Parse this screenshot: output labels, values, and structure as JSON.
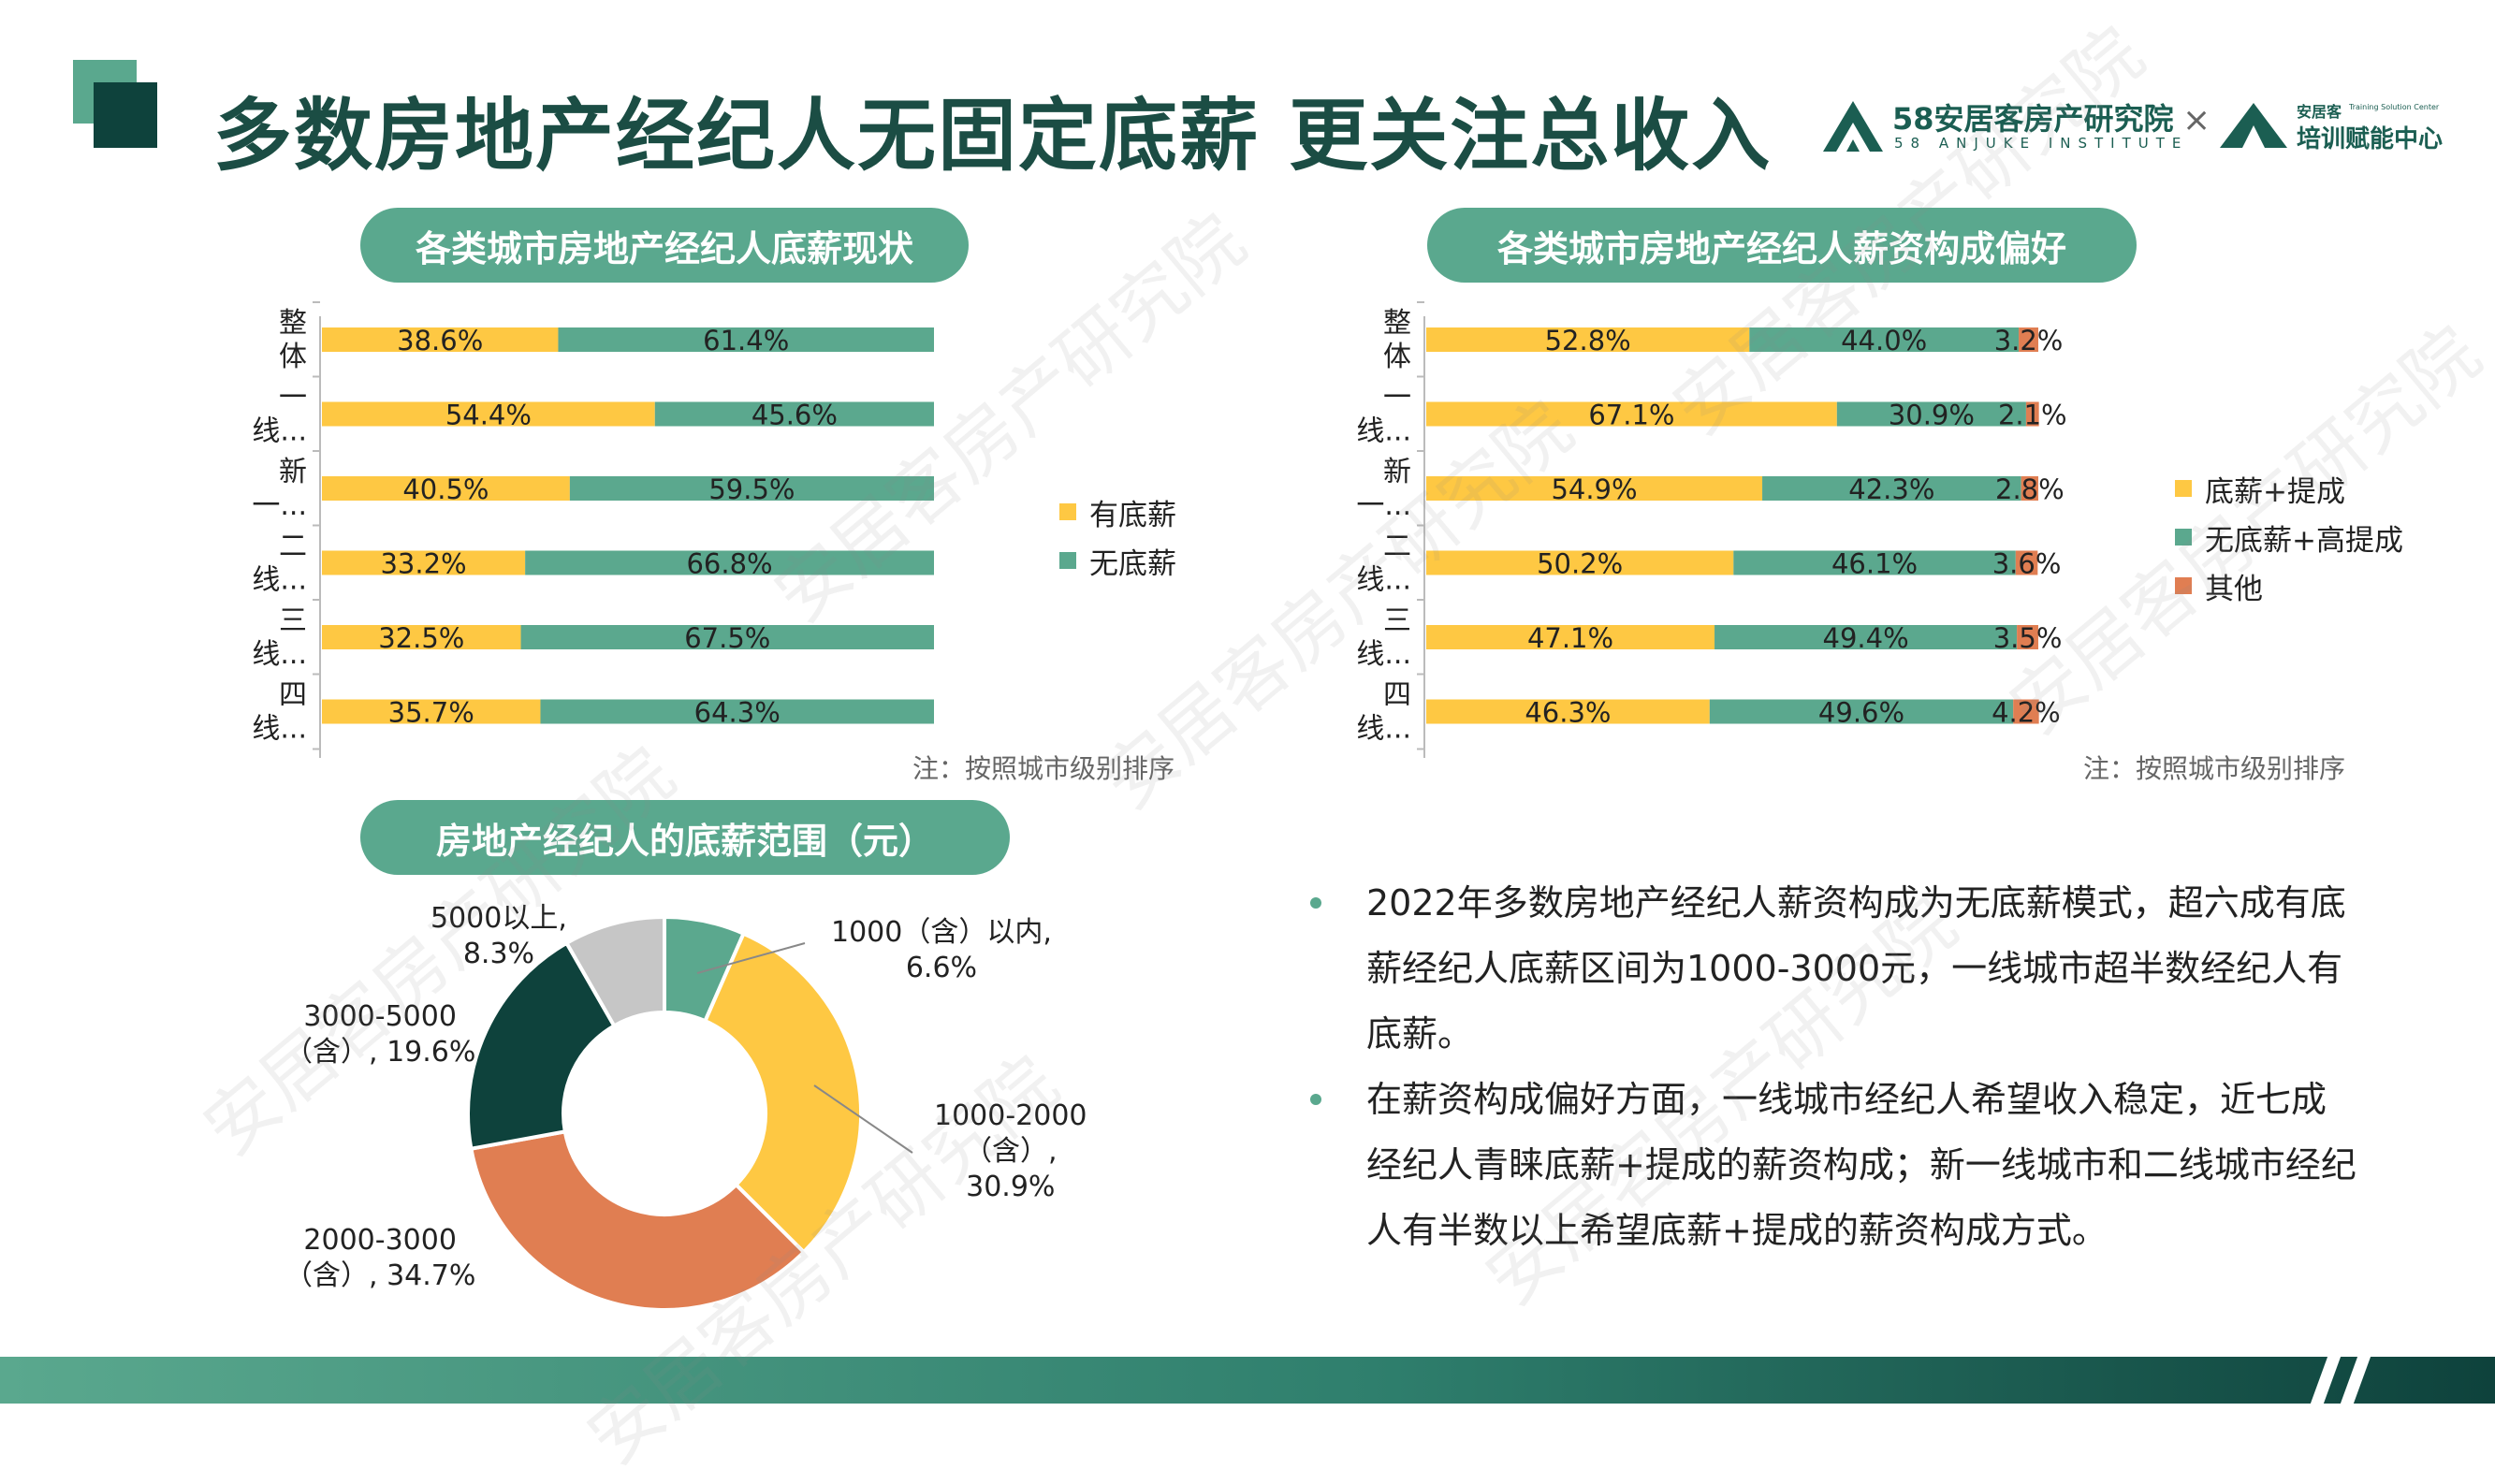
{
  "title": "多数房地产经纪人无固定底薪  更关注总收入",
  "logos": {
    "anjuke_name": "58安居客房产研究院",
    "anjuke_sub": "58 ANJUKE INSTITUTE",
    "cross": "×",
    "training_top": "安居客",
    "training_name": "培训赋能中心",
    "training_sub": "Training Solution Center"
  },
  "watermark": "安居客房产研究院",
  "colors": {
    "accent": "#5aa88e",
    "title": "#1b4d44",
    "yellow": "#fec843",
    "green": "#5ba88e",
    "orange": "#e07e52",
    "dark": "#0e423c",
    "gray": "#c6c6c6"
  },
  "chart1": {
    "pill": "各类城市房地产经纪人底薪现状",
    "note": "注：按照城市级别排序",
    "legend": [
      "有底薪",
      "无底薪"
    ]
  },
  "chart2": {
    "pill": "各类城市房地产经纪人薪资构成偏好",
    "note": "注：按照城市级别排序",
    "legend": [
      "底薪+提成",
      "无底薪+高提成",
      "其他"
    ]
  },
  "chart3": {
    "pill": "房地产经纪人的底薪范围（元）",
    "labels": [
      "1000（含）以内,\n6.6%",
      "1000-2000\n（含）,\n30.9%",
      "2000-3000\n（含）, 34.7%",
      "3000-5000\n（含）, 19.6%",
      "5000以上,\n8.3%"
    ]
  },
  "bullets": [
    "2022年多数房地产经纪人薪资构成为无底薪模式，超六成有底薪经纪人底薪区间为1000-3000元，一线城市超半数经纪人有底薪。",
    "在薪资构成偏好方面，一线城市经纪人希望收入稳定，近七成经纪人青睐底薪+提成的薪资构成；新一线城市和二线城市经纪人有半数以上希望底薪+提成的薪资构成方式。"
  ],
  "chart_data": [
    {
      "type": "bar",
      "orientation": "horizontal",
      "stacked": true,
      "categories": [
        [
          "整",
          "体"
        ],
        [
          "一",
          "线..."
        ],
        [
          "新",
          "一..."
        ],
        [
          "二",
          "线..."
        ],
        [
          "三",
          "线..."
        ],
        [
          "四",
          "线..."
        ]
      ],
      "series": [
        {
          "name": "有底薪",
          "values": [
            38.6,
            54.4,
            40.5,
            33.2,
            32.5,
            35.7
          ],
          "labels": [
            "38.6%",
            "54.4%",
            "40.5%",
            "33.2%",
            "32.5%",
            "35.7%"
          ]
        },
        {
          "name": "无底薪",
          "values": [
            61.4,
            45.6,
            59.5,
            66.8,
            67.5,
            64.3
          ],
          "labels": [
            "61.4%",
            "45.6%",
            "59.5%",
            "66.8%",
            "67.5%",
            "64.3%"
          ]
        }
      ],
      "xlim": [
        0,
        100
      ],
      "legend": "right"
    },
    {
      "type": "bar",
      "orientation": "horizontal",
      "stacked": true,
      "categories": [
        [
          "整",
          "体"
        ],
        [
          "一",
          "线..."
        ],
        [
          "新",
          "一..."
        ],
        [
          "二",
          "线..."
        ],
        [
          "三",
          "线..."
        ],
        [
          "四",
          "线..."
        ]
      ],
      "series": [
        {
          "name": "底薪+提成",
          "values": [
            52.8,
            67.1,
            54.9,
            50.2,
            47.1,
            46.3
          ],
          "labels": [
            "52.8%",
            "67.1%",
            "54.9%",
            "50.2%",
            "47.1%",
            "46.3%"
          ]
        },
        {
          "name": "无底薪+高提成",
          "values": [
            44.0,
            30.9,
            42.3,
            46.1,
            49.4,
            49.6
          ],
          "labels": [
            "44.0%",
            "30.9%",
            "42.3%",
            "46.1%",
            "49.4%",
            "49.6%"
          ]
        },
        {
          "name": "其他",
          "values": [
            3.2,
            2.1,
            2.8,
            3.6,
            3.5,
            4.2
          ],
          "labels": [
            "3.2%",
            "2.1%",
            "2.8%",
            "3.6%",
            "3.5%",
            "4.2%"
          ]
        }
      ],
      "xlim": [
        0,
        100
      ],
      "legend": "right"
    },
    {
      "type": "pie",
      "donut": true,
      "categories": [
        "1000（含）以内",
        "1000-2000（含）",
        "2000-3000（含）",
        "3000-5000（含）",
        "5000以上"
      ],
      "values": [
        6.6,
        30.9,
        34.7,
        19.6,
        8.3
      ]
    }
  ]
}
